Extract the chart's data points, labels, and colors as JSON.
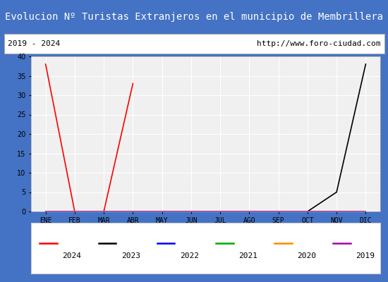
{
  "title": "Evolucion Nº Turistas Extranjeros en el municipio de Membrillera",
  "subtitle_left": "2019 - 2024",
  "subtitle_right": "http://www.foro-ciudad.com",
  "title_bg_color": "#4472c4",
  "title_fg_color": "#ffffff",
  "subtitle_bg_color": "#ffffff",
  "subtitle_fg_color": "#000000",
  "plot_bg_color": "#f0f0f0",
  "grid_color": "#ffffff",
  "months": [
    "ENE",
    "FEB",
    "MAR",
    "ABR",
    "MAY",
    "JUN",
    "JUL",
    "AGO",
    "SEP",
    "OCT",
    "NOV",
    "DIC"
  ],
  "month_indices": [
    1,
    2,
    3,
    4,
    5,
    6,
    7,
    8,
    9,
    10,
    11,
    12
  ],
  "series": [
    {
      "label": "2024",
      "color": "#ff0000",
      "linestyle": "-",
      "x": [
        1,
        2,
        3,
        4
      ],
      "y": [
        38,
        0,
        0,
        33
      ]
    },
    {
      "label": "2023",
      "color": "#000000",
      "linestyle": "-",
      "x": [
        1,
        2,
        3,
        4,
        5,
        6,
        7,
        8,
        9,
        10,
        11,
        12
      ],
      "y": [
        0,
        0,
        0,
        0,
        0,
        0,
        0,
        0,
        0,
        0,
        5,
        38
      ]
    },
    {
      "label": "2022",
      "color": "#0000ff",
      "linestyle": "-",
      "x": [
        1,
        2,
        3,
        4,
        5,
        6,
        7,
        8,
        9,
        10,
        11,
        12
      ],
      "y": [
        0,
        0,
        0,
        0,
        0,
        0,
        0,
        0,
        0,
        0,
        0,
        0
      ]
    },
    {
      "label": "2021",
      "color": "#00aa00",
      "linestyle": "-",
      "x": [
        1,
        2,
        3,
        4,
        5,
        6,
        7,
        8,
        9,
        10,
        11,
        12
      ],
      "y": [
        0,
        0,
        0,
        0,
        0,
        0,
        0,
        0,
        0,
        0,
        0,
        0
      ]
    },
    {
      "label": "2020",
      "color": "#ff8800",
      "linestyle": "-",
      "x": [
        1,
        2,
        3,
        4,
        5,
        6,
        7,
        8,
        9,
        10,
        11,
        12
      ],
      "y": [
        0,
        0,
        0,
        0,
        0,
        0,
        0,
        0,
        0,
        0,
        0,
        0
      ]
    },
    {
      "label": "2019",
      "color": "#aa00aa",
      "linestyle": "-",
      "x": [
        1,
        2,
        3,
        4,
        5,
        6,
        7,
        8,
        9,
        10,
        11,
        12
      ],
      "y": [
        0,
        0,
        0,
        0,
        0,
        0,
        0,
        0,
        0,
        0,
        0,
        0
      ]
    }
  ],
  "ylim": [
    0,
    40
  ],
  "yticks": [
    0,
    5,
    10,
    15,
    20,
    25,
    30,
    35,
    40
  ],
  "border_color": "#4472c4"
}
